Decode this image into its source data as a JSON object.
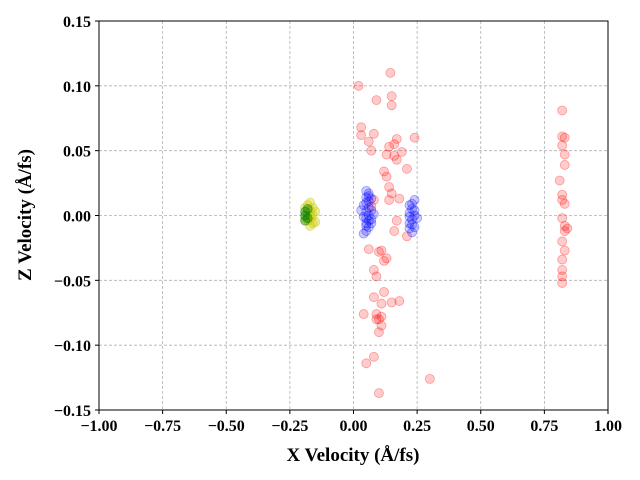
{
  "chart_data": {
    "type": "scatter",
    "title": "",
    "xlabel": "X Velocity (Å/fs)",
    "ylabel": "Z Velocity (Å/fs)",
    "xlim": [
      -1.0,
      1.0
    ],
    "ylim": [
      -0.15,
      0.15
    ],
    "xticks": [
      "−1.00",
      "−0.75",
      "−0.50",
      "−0.25",
      "0.00",
      "0.25",
      "0.50",
      "0.75",
      "1.00"
    ],
    "xtick_values": [
      -1.0,
      -0.75,
      -0.5,
      -0.25,
      0.0,
      0.25,
      0.5,
      0.75,
      1.0
    ],
    "yticks": [
      "−0.15",
      "−0.10",
      "−0.05",
      "0.00",
      "0.05",
      "0.10",
      "0.15"
    ],
    "ytick_values": [
      -0.15,
      -0.1,
      -0.05,
      0.0,
      0.05,
      0.1,
      0.15
    ],
    "grid": true,
    "series": [
      {
        "color": "#ff0000",
        "opacity": 0.2,
        "points": [
          [
            0.02,
            0.1
          ],
          [
            0.145,
            0.11
          ],
          [
            0.09,
            0.089
          ],
          [
            0.15,
            0.092
          ],
          [
            0.15,
            0.085
          ],
          [
            0.03,
            0.068
          ],
          [
            0.03,
            0.062
          ],
          [
            0.08,
            0.063
          ],
          [
            0.06,
            0.057
          ],
          [
            0.07,
            0.05
          ],
          [
            0.14,
            0.053
          ],
          [
            0.17,
            0.059
          ],
          [
            0.16,
            0.055
          ],
          [
            0.16,
            0.046
          ],
          [
            0.13,
            0.047
          ],
          [
            0.19,
            0.049
          ],
          [
            0.24,
            0.06
          ],
          [
            0.17,
            0.043
          ],
          [
            0.21,
            0.036
          ],
          [
            0.12,
            0.034
          ],
          [
            0.13,
            0.03
          ],
          [
            0.14,
            0.022
          ],
          [
            0.15,
            0.017
          ],
          [
            0.18,
            0.013
          ],
          [
            0.08,
            0.012
          ],
          [
            0.07,
            0.007
          ],
          [
            0.14,
            0.012
          ],
          [
            0.17,
            -0.004
          ],
          [
            0.16,
            -0.012
          ],
          [
            0.21,
            -0.016
          ],
          [
            0.06,
            -0.026
          ],
          [
            0.11,
            -0.027
          ],
          [
            0.1,
            -0.028
          ],
          [
            0.13,
            -0.033
          ],
          [
            0.12,
            -0.035
          ],
          [
            0.08,
            -0.042
          ],
          [
            0.09,
            -0.047
          ],
          [
            0.12,
            -0.059
          ],
          [
            0.15,
            -0.067
          ],
          [
            0.18,
            -0.066
          ],
          [
            0.11,
            -0.068
          ],
          [
            0.08,
            -0.063
          ],
          [
            0.04,
            -0.076
          ],
          [
            0.09,
            -0.076
          ],
          [
            0.09,
            -0.08
          ],
          [
            0.11,
            -0.078
          ],
          [
            0.1,
            -0.08
          ],
          [
            0.11,
            -0.085
          ],
          [
            0.1,
            -0.09
          ],
          [
            0.08,
            -0.109
          ],
          [
            0.05,
            -0.114
          ],
          [
            0.3,
            -0.126
          ],
          [
            0.1,
            -0.137
          ],
          [
            0.82,
            0.081
          ],
          [
            0.82,
            0.061
          ],
          [
            0.83,
            0.06
          ],
          [
            0.82,
            0.054
          ],
          [
            0.83,
            0.047
          ],
          [
            0.83,
            0.039
          ],
          [
            0.81,
            0.027
          ],
          [
            0.82,
            0.016
          ],
          [
            0.82,
            0.012
          ],
          [
            0.83,
            0.009
          ],
          [
            0.82,
            -0.002
          ],
          [
            0.83,
            -0.008
          ],
          [
            0.84,
            -0.01
          ],
          [
            0.83,
            -0.012
          ],
          [
            0.82,
            -0.02
          ],
          [
            0.83,
            -0.027
          ],
          [
            0.82,
            -0.034
          ],
          [
            0.82,
            -0.042
          ],
          [
            0.82,
            -0.047
          ],
          [
            0.82,
            -0.052
          ]
        ]
      },
      {
        "color": "#0000ff",
        "opacity": 0.2,
        "points": [
          [
            0.05,
            0.019
          ],
          [
            0.06,
            0.015
          ],
          [
            0.07,
            0.013
          ],
          [
            0.05,
            0.01
          ],
          [
            0.06,
            0.006
          ],
          [
            0.05,
            0.003
          ],
          [
            0.06,
            0.0
          ],
          [
            0.05,
            -0.002
          ],
          [
            0.07,
            -0.003
          ],
          [
            0.05,
            -0.006
          ],
          [
            0.06,
            -0.009
          ],
          [
            0.05,
            -0.012
          ],
          [
            0.04,
            -0.014
          ],
          [
            0.06,
            -0.004
          ],
          [
            0.07,
            0.004
          ],
          [
            0.04,
            0.008
          ],
          [
            0.05,
            0.014
          ],
          [
            0.06,
            0.011
          ],
          [
            0.07,
            -0.006
          ],
          [
            0.04,
            -0.001
          ],
          [
            0.03,
            0.004
          ],
          [
            0.08,
            0.001
          ],
          [
            0.05,
            -0.008
          ],
          [
            0.06,
            0.017
          ],
          [
            0.22,
            0.008
          ],
          [
            0.24,
            0.012
          ],
          [
            0.23,
            0.005
          ],
          [
            0.22,
            0.002
          ],
          [
            0.24,
            0.0
          ],
          [
            0.23,
            -0.003
          ],
          [
            0.22,
            -0.006
          ],
          [
            0.24,
            -0.009
          ],
          [
            0.23,
            -0.013
          ],
          [
            0.22,
            -0.01
          ],
          [
            0.25,
            -0.002
          ],
          [
            0.23,
            0.009
          ],
          [
            0.22,
            -0.001
          ],
          [
            0.24,
            0.004
          ],
          [
            0.23,
            -0.007
          ]
        ]
      },
      {
        "color": "#cccc00",
        "opacity": 0.35,
        "points": [
          [
            -0.17,
            0.01
          ],
          [
            -0.18,
            0.008
          ],
          [
            -0.16,
            0.006
          ],
          [
            -0.17,
            0.004
          ],
          [
            -0.18,
            0.002
          ],
          [
            -0.16,
            0.0
          ],
          [
            -0.17,
            -0.002
          ],
          [
            -0.18,
            -0.004
          ],
          [
            -0.16,
            -0.006
          ],
          [
            -0.17,
            -0.008
          ],
          [
            -0.19,
            -0.002
          ],
          [
            -0.15,
            0.003
          ],
          [
            -0.19,
            0.006
          ],
          [
            -0.15,
            -0.005
          ],
          [
            -0.17,
            0.0
          ]
        ]
      },
      {
        "color": "#008000",
        "opacity": 0.4,
        "points": [
          [
            -0.19,
            0.003
          ],
          [
            -0.19,
            0.0
          ],
          [
            -0.18,
            -0.002
          ],
          [
            -0.19,
            -0.004
          ],
          [
            -0.18,
            0.005
          ]
        ]
      }
    ]
  }
}
